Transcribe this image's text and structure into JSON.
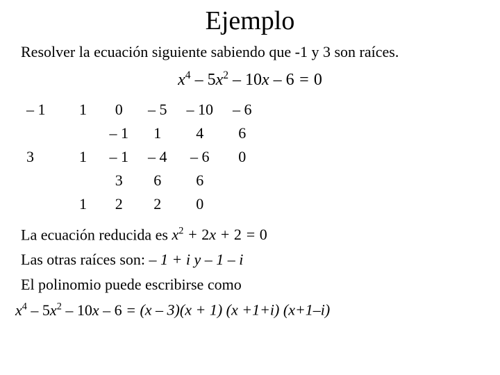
{
  "title": "Ejemplo",
  "problem": "Resolver la ecuación siguiente sabiendo que -1 y 3 son raíces.",
  "equation_html": "x<sup>4</sup> – 5x<sup>2</sup> – 10x – 6 = 0",
  "ruffini": {
    "div1": "– 1",
    "row1": [
      "1",
      "0",
      "– 5",
      "– 10",
      "– 6"
    ],
    "row2": [
      "",
      "– 1",
      "1",
      "4",
      "6"
    ],
    "div2": "3",
    "row3": [
      "1",
      "– 1",
      "– 4",
      "– 6",
      "0"
    ],
    "row4": [
      "",
      "3",
      "6",
      "6",
      ""
    ],
    "row5": [
      "1",
      "2",
      "2",
      "0",
      ""
    ]
  },
  "reduced_prefix": "La ecuación reducida es ",
  "reduced_eq_html": "x<sup>2</sup> + 2x + 2 = 0",
  "roots_prefix": "Las otras raíces son: ",
  "roots_body": "– 1 + i  y  – 1 – i",
  "factor_intro": "El polinomio puede escribirse como",
  "factor_lhs_html": "x<sup>4</sup> – 5x<sup>2</sup> – 10x – 6 = ",
  "factor_rhs": "(x – 3)(x + 1) (x +1+i) (x+1–i)",
  "style": {
    "background": "#ffffff",
    "text_color": "#000000",
    "font_family": "Times New Roman"
  }
}
